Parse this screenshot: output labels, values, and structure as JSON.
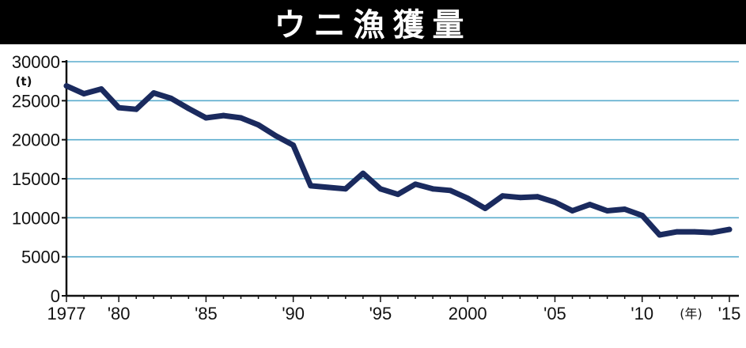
{
  "header": {
    "title": "ウニ漁獲量"
  },
  "colors": {
    "line": "#1a2a5e",
    "grid": "#5aaccd",
    "axis": "#111111",
    "background": "#ffffff",
    "title_bg": "#000000"
  },
  "chart_data": {
    "type": "line",
    "title": "ウニ漁獲量",
    "ylabel": "(t)",
    "xlabel": "(年)",
    "ylim": [
      0,
      30000
    ],
    "xlim": [
      1977,
      2015
    ],
    "grid": true,
    "y_ticks": [
      {
        "value": 0,
        "label": "0"
      },
      {
        "value": 5000,
        "label": "5000"
      },
      {
        "value": 10000,
        "label": "10000"
      },
      {
        "value": 15000,
        "label": "15000"
      },
      {
        "value": 20000,
        "label": "20000"
      },
      {
        "value": 25000,
        "label": "25000"
      },
      {
        "value": 30000,
        "label": "30000"
      }
    ],
    "x_ticks": [
      {
        "value": 1977,
        "label": "1977"
      },
      {
        "value": 1980,
        "label": "'80"
      },
      {
        "value": 1985,
        "label": "'85"
      },
      {
        "value": 1990,
        "label": "'90"
      },
      {
        "value": 1995,
        "label": "'95"
      },
      {
        "value": 2000,
        "label": "2000"
      },
      {
        "value": 2005,
        "label": "'05"
      },
      {
        "value": 2010,
        "label": "'10"
      },
      {
        "value": 2015,
        "label": "'15"
      }
    ],
    "series": [
      {
        "x": [
          1977,
          1978,
          1979,
          1980,
          1981,
          1982,
          1983,
          1984,
          1985,
          1986,
          1987,
          1988,
          1989,
          1990,
          1991,
          1992,
          1993,
          1994,
          1995,
          1996,
          1997,
          1998,
          1999,
          2000,
          2001,
          2002,
          2003,
          2004,
          2005,
          2006,
          2007,
          2008,
          2009,
          2010,
          2011,
          2012,
          2013,
          2014,
          2015
        ],
        "values": [
          26900,
          25900,
          26500,
          24100,
          23900,
          26000,
          25300,
          24000,
          22800,
          23100,
          22800,
          21900,
          20500,
          19300,
          14100,
          13900,
          13700,
          15700,
          13700,
          13000,
          14300,
          13700,
          13500,
          12500,
          11200,
          12800,
          12600,
          12700,
          12000,
          10900,
          11700,
          10900,
          11100,
          10300,
          7800,
          8200,
          8200,
          8100,
          8500
        ]
      }
    ]
  }
}
